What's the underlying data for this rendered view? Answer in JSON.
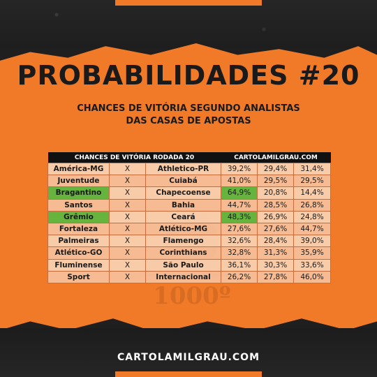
{
  "title": "PROBABILIDADES #20",
  "subtitle_line1": "CHANCES DE VITÓRIA SEGUNDO ANALISTAS",
  "subtitle_line2": "DAS CASAS DE APOSTAS",
  "table": {
    "header_left": "CHANCES DE VITÓRIA RODADA 20",
    "header_right": "CARTOLAMILGRAU.COM",
    "rows": [
      {
        "home": "América-MG",
        "vs": "X",
        "away": "Athletico-PR",
        "home_pct": "39,2%",
        "draw_pct": "29,4%",
        "away_pct": "31,4%"
      },
      {
        "home": "Juventude",
        "vs": "X",
        "away": "Cuiabá",
        "home_pct": "41,0%",
        "draw_pct": "29,5%",
        "away_pct": "29,5%"
      },
      {
        "home": "Bragantino",
        "vs": "X",
        "away": "Chapecoense",
        "home_pct": "64,9%",
        "draw_pct": "20,8%",
        "away_pct": "14,4%"
      },
      {
        "home": "Santos",
        "vs": "X",
        "away": "Bahia",
        "home_pct": "44,7%",
        "draw_pct": "28,5%",
        "away_pct": "26,8%"
      },
      {
        "home": "Grêmio",
        "vs": "X",
        "away": "Ceará",
        "home_pct": "48,3%",
        "draw_pct": "26,9%",
        "away_pct": "24,8%"
      },
      {
        "home": "Fortaleza",
        "vs": "X",
        "away": "Atlético-MG",
        "home_pct": "27,6%",
        "draw_pct": "27,6%",
        "away_pct": "44,7%"
      },
      {
        "home": "Palmeiras",
        "vs": "X",
        "away": "Flamengo",
        "home_pct": "32,6%",
        "draw_pct": "28,4%",
        "away_pct": "39,0%"
      },
      {
        "home": "Atlético-GO",
        "vs": "X",
        "away": "Corinthians",
        "home_pct": "32,8%",
        "draw_pct": "31,3%",
        "away_pct": "35,9%"
      },
      {
        "home": "Fluminense",
        "vs": "X",
        "away": "São Paulo",
        "home_pct": "36,1%",
        "draw_pct": "30,3%",
        "away_pct": "33,6%"
      },
      {
        "home": "Sport",
        "vs": "X",
        "away": "Internacional",
        "home_pct": "26,2%",
        "draw_pct": "27,8%",
        "away_pct": "46,0%"
      }
    ],
    "highlighted_rows": [
      2,
      4
    ]
  },
  "watermark_text": "1000º",
  "footer": "CARTOLAMILGRAU.COM",
  "colors": {
    "background": "#1f1f1f",
    "accent_orange": "#f07a28",
    "highlight_green": "#66b33d",
    "header_black": "#111111"
  }
}
